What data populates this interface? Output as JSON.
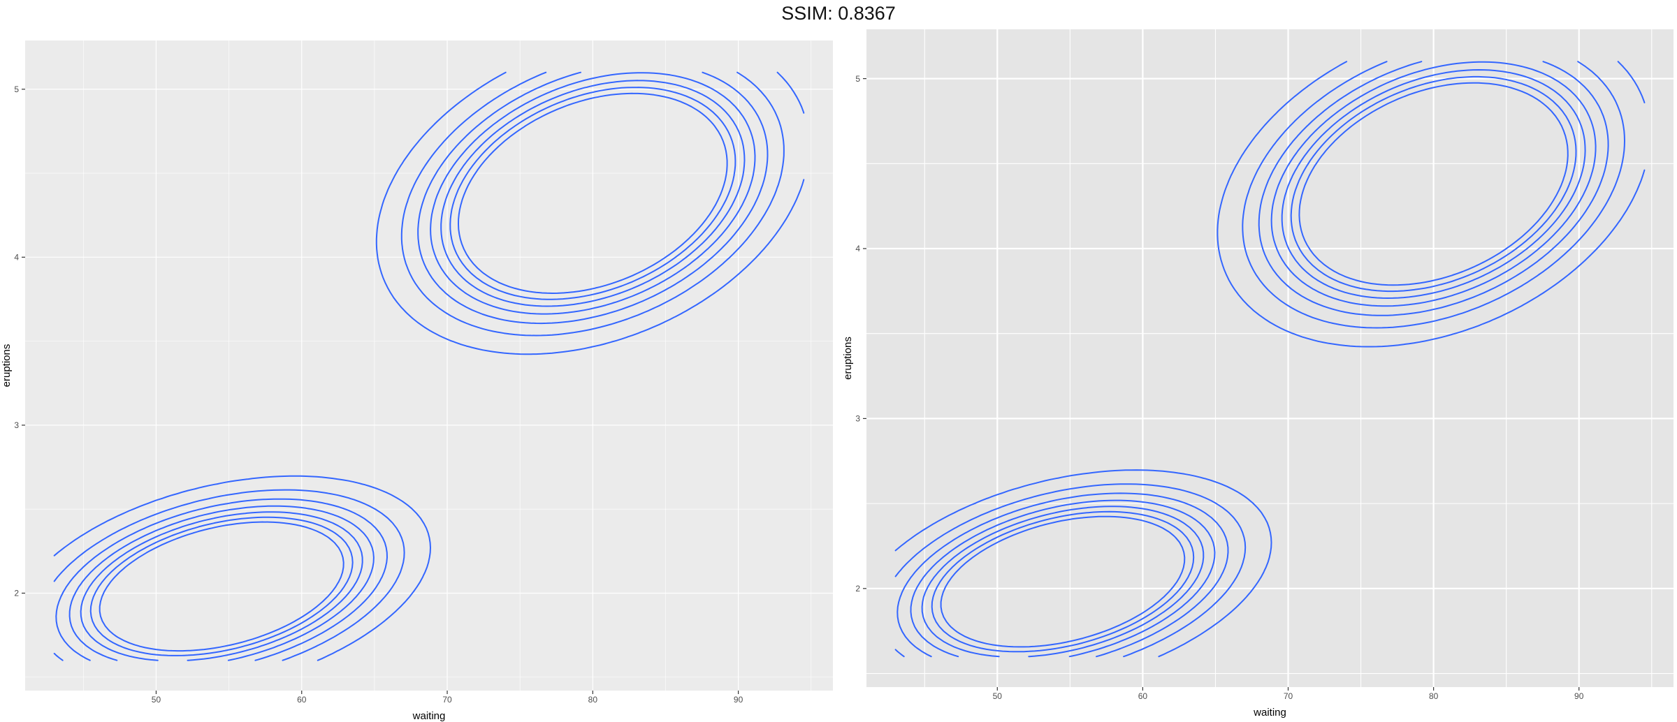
{
  "page": {
    "title": "SSIM: 0.8367"
  },
  "chart_data": [
    {
      "type": "contour",
      "panel": "left",
      "title": "",
      "xlabel": "waiting",
      "ylabel": "eruptions",
      "xlim": [
        41,
        96.5
      ],
      "ylim": [
        1.42,
        5.29
      ],
      "x_ticks": [
        50,
        60,
        70,
        80,
        90
      ],
      "y_ticks": [
        2,
        3,
        4,
        5
      ],
      "x_tick_labels": [
        "50",
        "60",
        "70",
        "80",
        "90"
      ],
      "y_tick_labels": [
        "2",
        "3",
        "4",
        "5"
      ],
      "grid": true,
      "line_color": "#3366FF",
      "panel_background": "#EBEBEB",
      "grid_color": "#FFFFFF"
    },
    {
      "type": "contour",
      "panel": "right",
      "title": "",
      "xlabel": "waiting",
      "ylabel": "eruptions",
      "xlim": [
        41,
        96.5
      ],
      "ylim": [
        1.42,
        5.29
      ],
      "x_ticks": [
        50,
        60,
        70,
        80,
        90
      ],
      "y_ticks": [
        2,
        3,
        4,
        5
      ],
      "x_tick_labels": [
        "50",
        "60",
        "70",
        "80",
        "90"
      ],
      "y_tick_labels": [
        "2",
        "3",
        "4",
        "5"
      ],
      "grid": true,
      "line_color": "#3366FF",
      "panel_background": "#E5E5E5",
      "grid_color": "#FFFFFF"
    }
  ]
}
